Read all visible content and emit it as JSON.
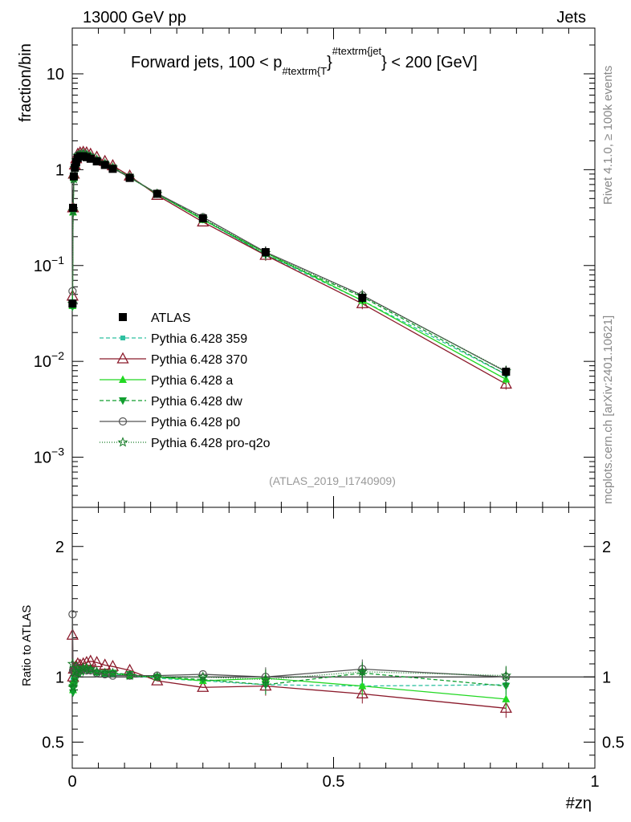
{
  "header": {
    "left": "13000 GeV pp",
    "right": "Jets"
  },
  "side_text": {
    "top": "Rivet 4.1.0, ≥ 100k events",
    "bottom": "mcplots.cern.ch [arXiv:2401.10621]"
  },
  "chart_data": {
    "type": "line",
    "title": {
      "prefix": "Forward jets, 100 < p",
      "sub": "#textrm{T",
      "sup": "#textrm{jet",
      "suffix": "} < 200 [GeV]"
    },
    "ylabel": "fraction/bin",
    "ratio_ylabel": "Ratio to ATLAS",
    "xlabel": "#zη",
    "provenance": "(ATLAS_2019_I1740909)",
    "xlim": [
      0,
      1
    ],
    "ylim": [
      0.0003,
      30
    ],
    "ratio_ylim": [
      0.3,
      2.3
    ],
    "x_ticks": [
      "0",
      "0.5",
      "1"
    ],
    "x_tick_values": [
      0,
      0.5,
      1
    ],
    "y_ticks": [
      {
        "value": 10,
        "base": "10",
        "exp": ""
      },
      {
        "value": 1,
        "base": "1",
        "exp": ""
      },
      {
        "value": 0.1,
        "base": "10",
        "exp": "−1"
      },
      {
        "value": 0.01,
        "base": "10",
        "exp": "−2"
      },
      {
        "value": 0.001,
        "base": "10",
        "exp": "−3"
      }
    ],
    "ratio_ticks": [
      {
        "value": 2,
        "label": "2"
      },
      {
        "value": 1,
        "label": "1"
      },
      {
        "value": 0.5,
        "label": "0.5"
      }
    ],
    "x": [
      0.0005,
      0.0015,
      0.003,
      0.005,
      0.0075,
      0.0105,
      0.015,
      0.021,
      0.0275,
      0.035,
      0.047,
      0.0625,
      0.0775,
      0.11,
      0.1625,
      0.25,
      0.37,
      0.555,
      0.83
    ],
    "series": [
      {
        "name": "ATLAS",
        "color": "#000000",
        "marker": "filled-square",
        "dash": "",
        "values": [
          0.04,
          0.4,
          0.85,
          1.05,
          1.2,
          1.32,
          1.38,
          1.38,
          1.35,
          1.3,
          1.22,
          1.12,
          1.02,
          0.82,
          0.56,
          0.31,
          0.138,
          0.046,
          0.0078
        ],
        "ratio": [
          1,
          1,
          1,
          1,
          1,
          1,
          1,
          1,
          1,
          1,
          1,
          1,
          1,
          1,
          1,
          1,
          1,
          1,
          1
        ]
      },
      {
        "name": "Pythia 6.428 359",
        "color": "#2EC0A0",
        "marker": "small-square",
        "dash": "5,3",
        "values": [
          0.042,
          0.39,
          0.85,
          1.1,
          1.28,
          1.43,
          1.47,
          1.48,
          1.43,
          1.37,
          1.26,
          1.14,
          1.04,
          0.83,
          0.555,
          0.3,
          0.13,
          0.043,
          0.0073
        ],
        "ratio": [
          1.05,
          0.98,
          1.0,
          1.05,
          1.07,
          1.08,
          1.07,
          1.07,
          1.06,
          1.05,
          1.03,
          1.02,
          1.02,
          1.01,
          0.99,
          0.97,
          0.94,
          0.93,
          0.94
        ]
      },
      {
        "name": "Pythia 6.428 370",
        "color": "#8B1A2B",
        "marker": "open-triangle",
        "dash": "",
        "values": [
          0.048,
          0.4,
          0.9,
          1.12,
          1.3,
          1.45,
          1.5,
          1.52,
          1.5,
          1.45,
          1.35,
          1.22,
          1.1,
          0.86,
          0.54,
          0.285,
          0.128,
          0.04,
          0.0058
        ],
        "ratio": [
          1.32,
          1.0,
          1.06,
          1.07,
          1.08,
          1.1,
          1.09,
          1.1,
          1.11,
          1.12,
          1.11,
          1.09,
          1.08,
          1.05,
          0.97,
          0.92,
          0.93,
          0.87,
          0.76
        ]
      },
      {
        "name": "Pythia 6.428 a",
        "color": "#22D822",
        "marker": "filled-triangle",
        "dash": "",
        "values": [
          0.038,
          0.36,
          0.82,
          1.08,
          1.26,
          1.4,
          1.45,
          1.47,
          1.44,
          1.38,
          1.27,
          1.15,
          1.05,
          0.83,
          0.56,
          0.3,
          0.136,
          0.043,
          0.0065
        ],
        "ratio": [
          0.95,
          0.9,
          0.97,
          1.03,
          1.05,
          1.06,
          1.05,
          1.07,
          1.07,
          1.06,
          1.04,
          1.03,
          1.03,
          1.01,
          1.0,
          0.97,
          0.99,
          0.93,
          0.83
        ]
      },
      {
        "name": "Pythia 6.428 dw",
        "color": "#119E2F",
        "marker": "filled-inv-triangle",
        "dash": "5,3",
        "values": [
          0.037,
          0.35,
          0.78,
          1.02,
          1.22,
          1.37,
          1.42,
          1.44,
          1.41,
          1.36,
          1.26,
          1.15,
          1.05,
          0.84,
          0.56,
          0.305,
          0.13,
          0.047,
          0.0073
        ],
        "ratio": [
          0.92,
          0.88,
          0.92,
          0.97,
          1.02,
          1.04,
          1.03,
          1.04,
          1.05,
          1.05,
          1.03,
          1.03,
          1.03,
          1.02,
          1.0,
          0.98,
          0.94,
          1.03,
          0.93
        ]
      },
      {
        "name": "Pythia 6.428 p0",
        "color": "#555555",
        "marker": "open-circle",
        "dash": "",
        "values": [
          0.054,
          0.4,
          0.88,
          1.08,
          1.27,
          1.42,
          1.45,
          1.46,
          1.42,
          1.36,
          1.25,
          1.14,
          1.03,
          0.83,
          0.565,
          0.32,
          0.138,
          0.049,
          0.0078
        ],
        "ratio": [
          1.48,
          1.05,
          1.04,
          1.03,
          1.06,
          1.07,
          1.05,
          1.06,
          1.05,
          1.05,
          1.03,
          1.02,
          1.01,
          1.01,
          1.01,
          1.02,
          1.0,
          1.06,
          1.0
        ]
      },
      {
        "name": "Pythia 6.428 pro-q2o",
        "color": "#127A23",
        "marker": "open-star",
        "dash": "1,2",
        "values": [
          0.04,
          0.37,
          0.8,
          1.04,
          1.25,
          1.4,
          1.45,
          1.47,
          1.44,
          1.38,
          1.27,
          1.15,
          1.05,
          0.83,
          0.56,
          0.31,
          0.135,
          0.048,
          0.0079
        ],
        "ratio": [
          1.1,
          0.92,
          0.95,
          1.0,
          1.04,
          1.06,
          1.05,
          1.07,
          1.07,
          1.06,
          1.04,
          1.03,
          1.03,
          1.01,
          1.0,
          1.0,
          0.98,
          1.04,
          1.01
        ]
      }
    ]
  }
}
